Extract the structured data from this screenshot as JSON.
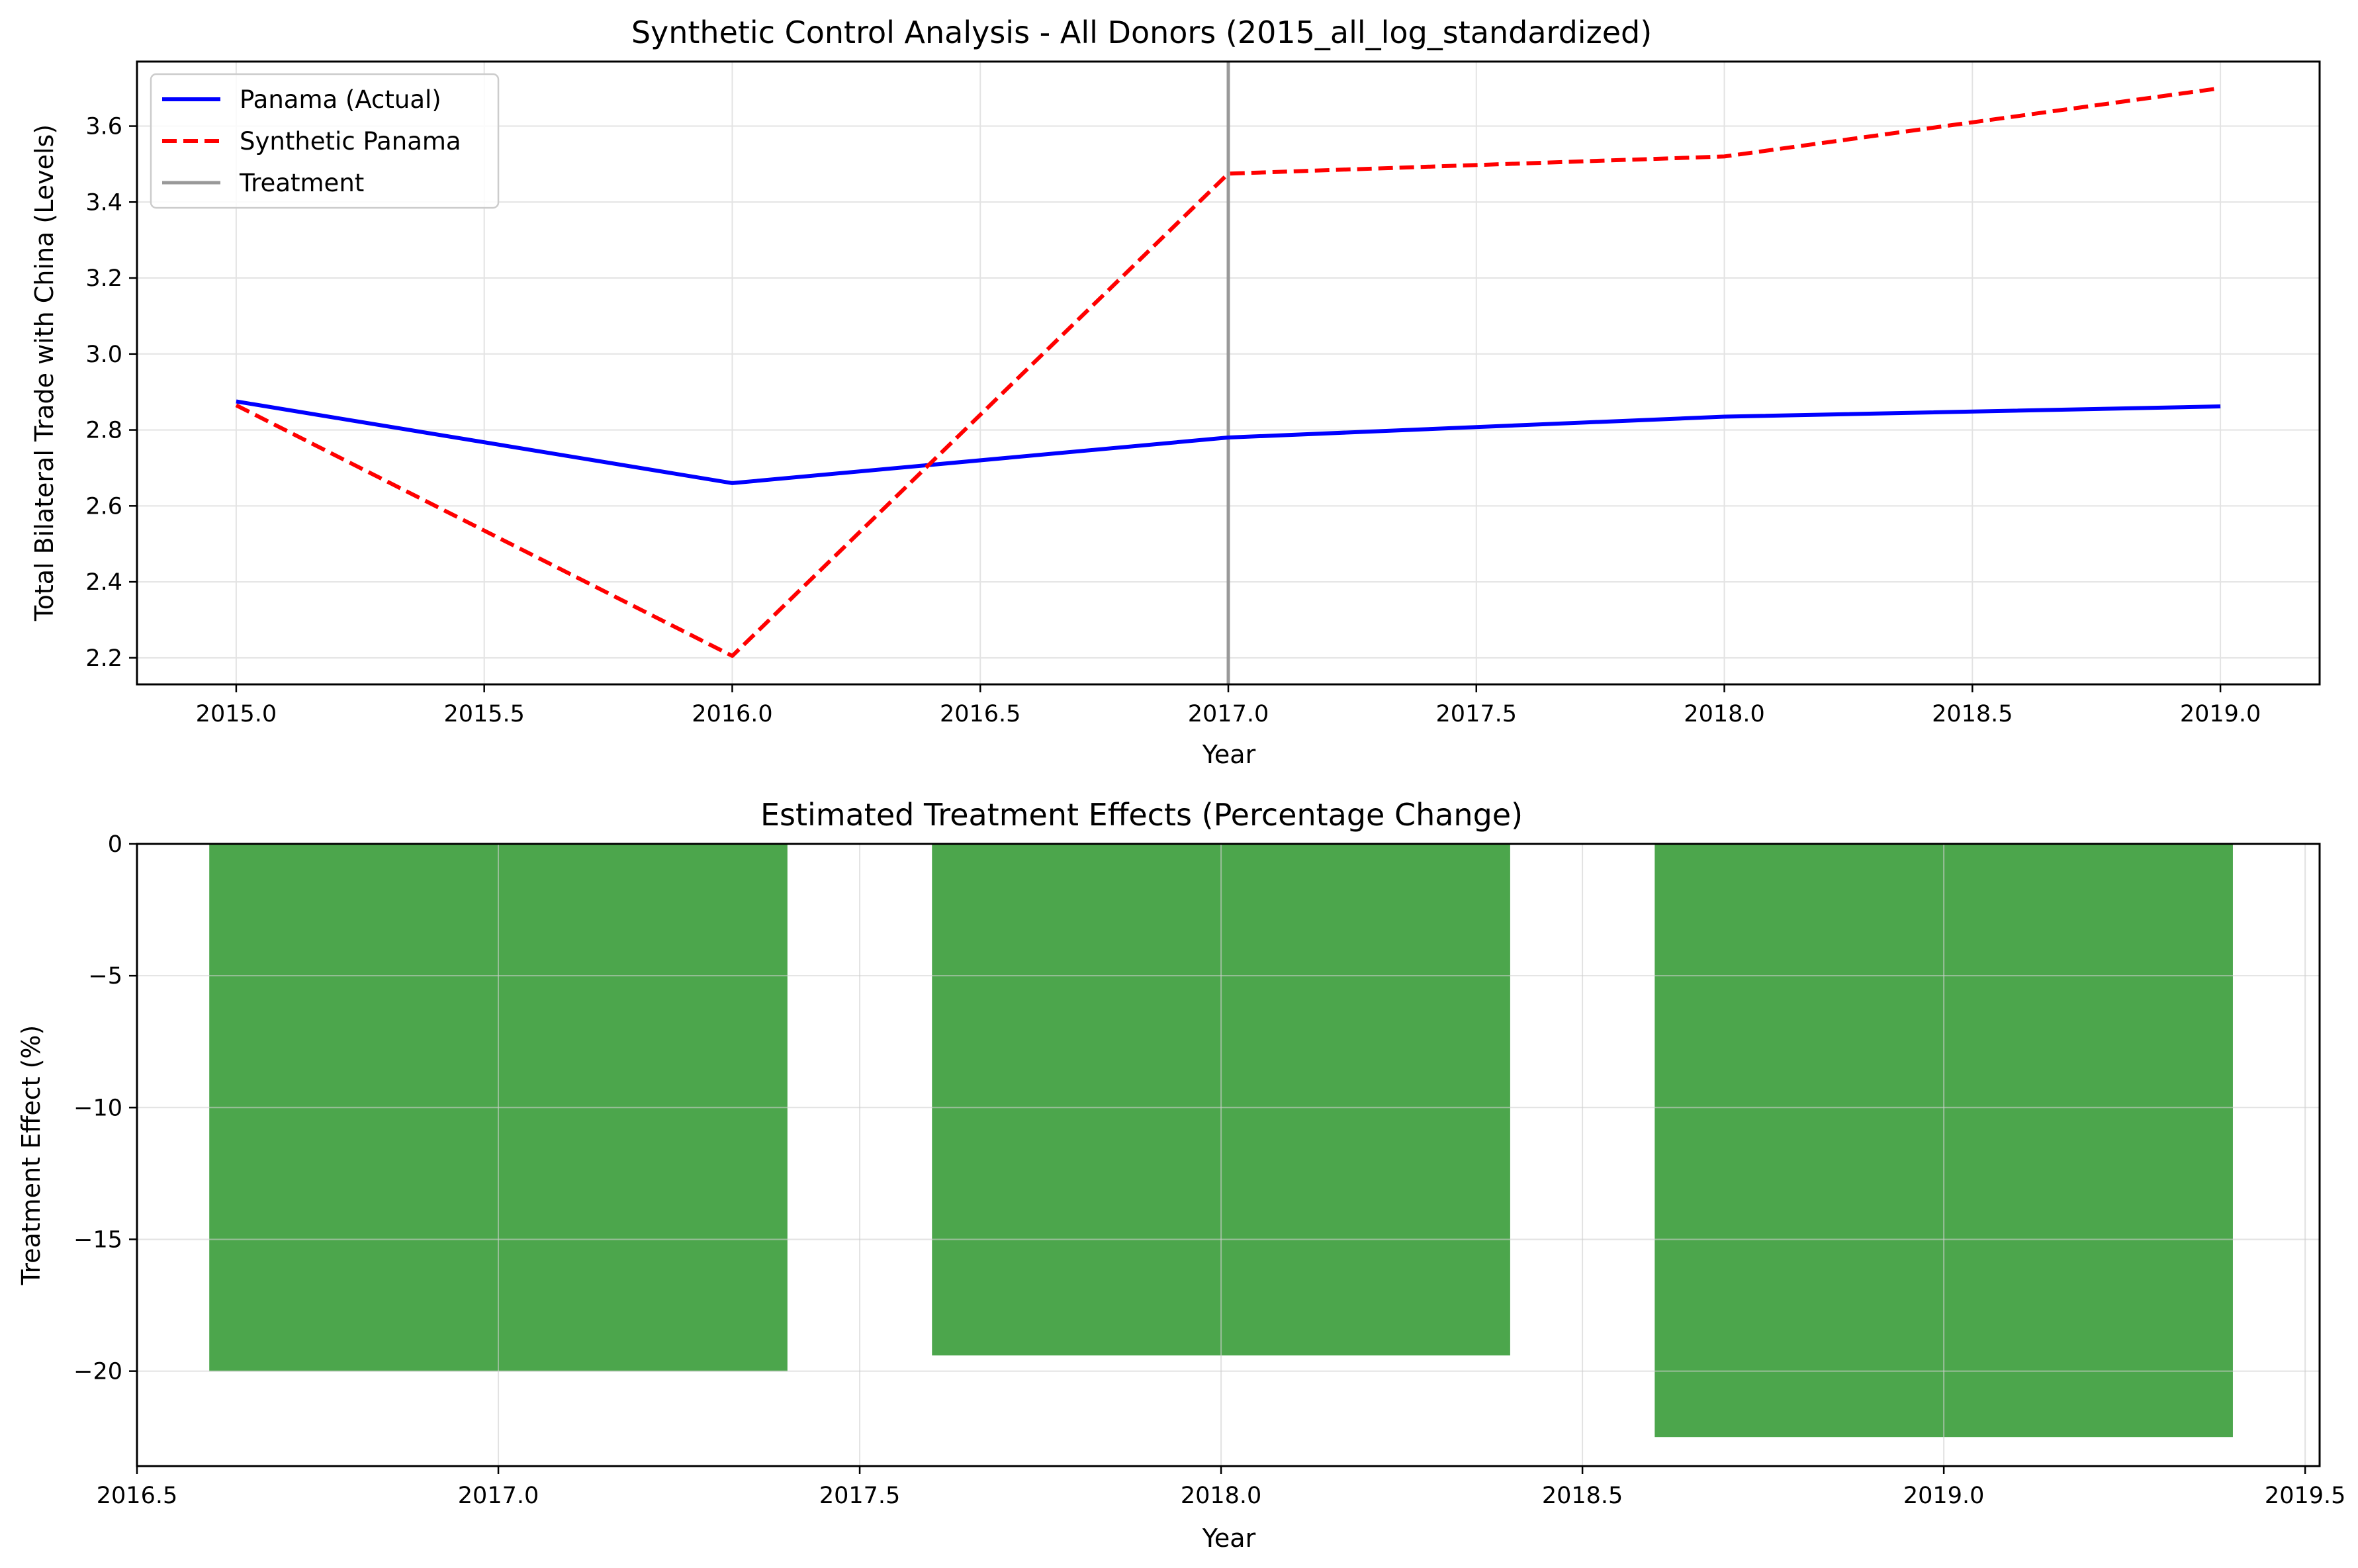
{
  "chart_data": [
    {
      "type": "line",
      "title": "Synthetic Control Analysis - All Donors (2015_all_log_standardized)",
      "xlabel": "Year",
      "ylabel": "Total Bilateral Trade with China (Levels)",
      "xlim": [
        2014.8,
        2019.2
      ],
      "ylim": [
        2.13,
        3.77
      ],
      "xticks": [
        2015.0,
        2015.5,
        2016.0,
        2016.5,
        2017.0,
        2017.5,
        2018.0,
        2018.5,
        2019.0
      ],
      "xtick_labels": [
        "2015.0",
        "2015.5",
        "2016.0",
        "2016.5",
        "2017.0",
        "2017.5",
        "2018.0",
        "2018.5",
        "2019.0"
      ],
      "yticks": [
        2.2,
        2.4,
        2.6,
        2.8,
        3.0,
        3.2,
        3.4,
        3.6
      ],
      "ytick_labels": [
        "2.2",
        "2.4",
        "2.6",
        "2.8",
        "3.0",
        "3.2",
        "3.4",
        "3.6"
      ],
      "grid": true,
      "legend_position": "upper-left",
      "series": [
        {
          "name": "Panama (Actual)",
          "color": "#0000ff",
          "style": "solid",
          "x": [
            2015,
            2016,
            2017,
            2018,
            2019
          ],
          "y": [
            2.875,
            2.66,
            2.78,
            2.835,
            2.862
          ]
        },
        {
          "name": "Synthetic Panama",
          "color": "#ff0000",
          "style": "dashed",
          "x": [
            2015,
            2016,
            2017,
            2018,
            2019
          ],
          "y": [
            2.865,
            2.205,
            3.475,
            3.52,
            3.7
          ]
        }
      ],
      "treatment_line": {
        "name": "Treatment",
        "x": 2017,
        "color": "#999999"
      }
    },
    {
      "type": "bar",
      "title": "Estimated Treatment Effects (Percentage Change)",
      "xlabel": "Year",
      "ylabel": "Treatment Effect (%)",
      "xlim": [
        2016.5,
        2019.52
      ],
      "ylim": [
        -23.6,
        0
      ],
      "xticks": [
        2016.5,
        2017.0,
        2017.5,
        2018.0,
        2018.5,
        2019.0,
        2019.5
      ],
      "xtick_labels": [
        "2016.5",
        "2017.0",
        "2017.5",
        "2018.0",
        "2018.5",
        "2019.0",
        "2019.5"
      ],
      "yticks": [
        0,
        -5,
        -10,
        -15,
        -20
      ],
      "ytick_labels": [
        "0",
        "−5",
        "−10",
        "−15",
        "−20"
      ],
      "grid": true,
      "bar_width": 0.8,
      "color": "#4ca64c",
      "x": [
        2017,
        2018,
        2019
      ],
      "values": [
        -20.0,
        -19.4,
        -22.5
      ]
    }
  ]
}
